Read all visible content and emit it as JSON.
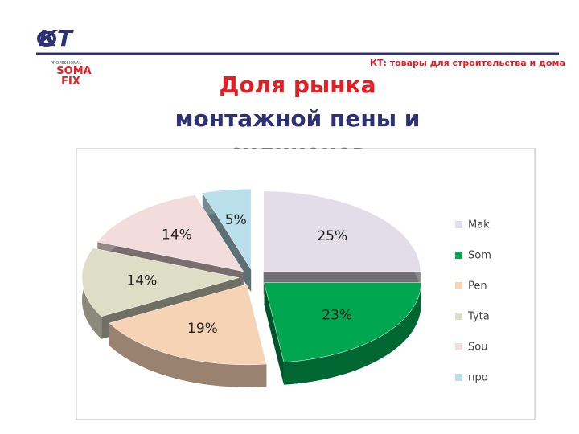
{
  "header": {
    "tagline": "КТ: товары для строительства и дома",
    "logo": "КТ",
    "brand_top": "SOMA",
    "brand_bottom": "FIX",
    "brand_caption": "PROFESSIONAL"
  },
  "chart_data": {
    "type": "pie",
    "title": "Доля рынка монтажной пены и силиконов",
    "categories": [
      "Mak",
      "Som",
      "Pen",
      "Tyta",
      "Sou",
      "про"
    ],
    "values": [
      25,
      23,
      19,
      14,
      14,
      5
    ],
    "value_labels": [
      "25%",
      "23%",
      "19%",
      "14%",
      "14%",
      "5%"
    ],
    "colors": [
      "#e2dde9",
      "#00a650",
      "#f7d3b5",
      "#deddc5",
      "#f2dcdc",
      "#b9dfea"
    ],
    "legend": "right",
    "exploded": true
  }
}
